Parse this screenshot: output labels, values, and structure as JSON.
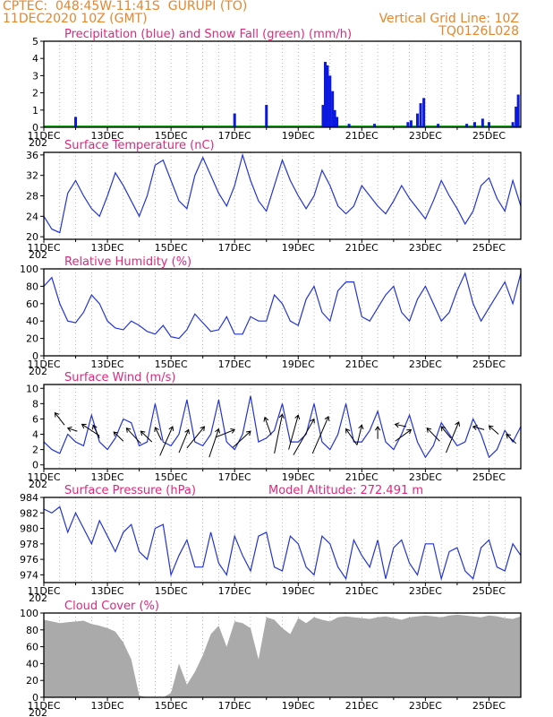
{
  "header": {
    "line1": "CPTEC:  048:45W-11:41S  GURUPI (TO)",
    "line2": "11DEC2020 10Z (GMT)",
    "grid_note": "Vertical Grid Line: 10Z",
    "code": "TQ0126L028"
  },
  "x_labels": [
    "11DEC",
    "13DEC",
    "15DEC",
    "17DEC",
    "19DEC",
    "21DEC",
    "23DEC",
    "25DEC"
  ],
  "year_stub": "202",
  "colors": {
    "title": "#e0287a",
    "header": "#e8862a",
    "line": "#2233dd",
    "snow": "#22aa22",
    "cloud": "#aaaaaa"
  },
  "chart_data": [
    {
      "id": "precip",
      "type": "bar",
      "title": "Precipitation (blue) and Snow Fall (green) (mm/h)",
      "ylim": [
        0,
        5
      ],
      "yticks": [
        0,
        1,
        2,
        3,
        4,
        5
      ],
      "x_unit": "days since 11DEC 10Z",
      "xlim": [
        0,
        15
      ],
      "series": [
        {
          "name": "Precipitation",
          "points": [
            [
              1.0,
              0.6
            ],
            [
              6.0,
              0.8
            ],
            [
              7.0,
              1.3
            ],
            [
              8.78,
              1.3
            ],
            [
              8.85,
              3.8
            ],
            [
              8.92,
              3.6
            ],
            [
              9.0,
              3.0
            ],
            [
              9.08,
              2.1
            ],
            [
              9.15,
              1.0
            ],
            [
              9.22,
              0.6
            ],
            [
              9.6,
              0.2
            ],
            [
              10.4,
              0.2
            ],
            [
              11.45,
              0.3
            ],
            [
              11.55,
              0.4
            ],
            [
              11.75,
              0.8
            ],
            [
              11.85,
              1.4
            ],
            [
              11.95,
              1.7
            ],
            [
              12.4,
              0.2
            ],
            [
              13.3,
              0.2
            ],
            [
              13.55,
              0.3
            ],
            [
              13.8,
              0.5
            ],
            [
              14.0,
              0.3
            ],
            [
              14.75,
              0.3
            ],
            [
              14.85,
              1.2
            ],
            [
              14.92,
              1.9
            ]
          ]
        },
        {
          "name": "Snow Fall",
          "points": []
        }
      ]
    },
    {
      "id": "temp",
      "type": "line",
      "title": "Surface Temperature (nC)",
      "ylim": [
        19.5,
        36.5
      ],
      "yticks": [
        20,
        24,
        28,
        32,
        36
      ],
      "x": [
        0,
        0.25,
        0.5,
        0.75,
        1,
        1.25,
        1.5,
        1.75,
        2,
        2.25,
        2.5,
        2.75,
        3,
        3.25,
        3.5,
        3.75,
        4,
        4.25,
        4.5,
        4.75,
        5,
        5.25,
        5.5,
        5.75,
        6,
        6.25,
        6.5,
        6.75,
        7,
        7.25,
        7.5,
        7.75,
        8,
        8.25,
        8.5,
        8.75,
        9,
        9.25,
        9.5,
        9.75,
        10,
        10.25,
        10.5,
        10.75,
        11,
        11.25,
        11.5,
        11.75,
        12,
        12.25,
        12.5,
        12.75,
        13,
        13.25,
        13.5,
        13.75,
        14,
        14.25,
        14.5,
        14.75,
        15
      ],
      "values": [
        24,
        21.5,
        20.8,
        28.5,
        31,
        28,
        25.5,
        24,
        28,
        32.5,
        30,
        27,
        24,
        28,
        34,
        35,
        31,
        27,
        25.5,
        32,
        35.5,
        32,
        28.5,
        26,
        30,
        36,
        31,
        27,
        25,
        30,
        35,
        31,
        28,
        25.5,
        28,
        33,
        30,
        26,
        24.5,
        26,
        30,
        28,
        26,
        24.5,
        27,
        30,
        27.5,
        25.5,
        23.5,
        27,
        31,
        28,
        25.5,
        22.5,
        25,
        30,
        31.5,
        27.5,
        25,
        31,
        26
      ]
    },
    {
      "id": "rh",
      "type": "line",
      "title": "Relative Humidity (%)",
      "ylim": [
        0,
        100
      ],
      "yticks": [
        0,
        20,
        40,
        60,
        80,
        100
      ],
      "x": [
        0,
        0.25,
        0.5,
        0.75,
        1,
        1.25,
        1.5,
        1.75,
        2,
        2.25,
        2.5,
        2.75,
        3,
        3.25,
        3.5,
        3.75,
        4,
        4.25,
        4.5,
        4.75,
        5,
        5.25,
        5.5,
        5.75,
        6,
        6.25,
        6.5,
        6.75,
        7,
        7.25,
        7.5,
        7.75,
        8,
        8.25,
        8.5,
        8.75,
        9,
        9.25,
        9.5,
        9.75,
        10,
        10.25,
        10.5,
        10.75,
        11,
        11.25,
        11.5,
        11.75,
        12,
        12.25,
        12.5,
        12.75,
        13,
        13.25,
        13.5,
        13.75,
        14,
        14.25,
        14.5,
        14.75,
        15
      ],
      "values": [
        80,
        90,
        60,
        40,
        38,
        50,
        70,
        60,
        40,
        32,
        30,
        40,
        35,
        28,
        25,
        35,
        22,
        20,
        30,
        48,
        38,
        28,
        30,
        45,
        25,
        25,
        45,
        40,
        40,
        70,
        60,
        40,
        35,
        65,
        80,
        50,
        40,
        75,
        85,
        85,
        45,
        40,
        55,
        70,
        80,
        50,
        40,
        65,
        80,
        60,
        40,
        50,
        75,
        95,
        60,
        40,
        55,
        70,
        85,
        60,
        95
      ]
    },
    {
      "id": "wind",
      "type": "line",
      "title": "Surface Wind (m/s)",
      "ylim": [
        -0.5,
        10.5
      ],
      "yticks": [
        0,
        2,
        4,
        6,
        8,
        10
      ],
      "x": [
        0,
        0.25,
        0.5,
        0.75,
        1,
        1.25,
        1.5,
        1.75,
        2,
        2.25,
        2.5,
        2.75,
        3,
        3.25,
        3.5,
        3.75,
        4,
        4.25,
        4.5,
        4.75,
        5,
        5.25,
        5.5,
        5.75,
        6,
        6.25,
        6.5,
        6.75,
        7,
        7.25,
        7.5,
        7.75,
        8,
        8.25,
        8.5,
        8.75,
        9,
        9.25,
        9.5,
        9.75,
        10,
        10.25,
        10.5,
        10.75,
        11,
        11.25,
        11.5,
        11.75,
        12,
        12.25,
        12.5,
        12.75,
        13,
        13.25,
        13.5,
        13.75,
        14,
        14.25,
        14.5,
        14.75,
        15
      ],
      "values": [
        3,
        2,
        1.5,
        4,
        3,
        2.5,
        6.5,
        3,
        2,
        3.5,
        6,
        5.5,
        2.5,
        3,
        8,
        3,
        2.5,
        4,
        8.5,
        3,
        2.5,
        4,
        8.5,
        3,
        2,
        4,
        9,
        3,
        3.5,
        4.5,
        8,
        3,
        3,
        4,
        8,
        3,
        2,
        4,
        8,
        3,
        3,
        4.5,
        7,
        3,
        2,
        4,
        6.5,
        3,
        1,
        2.5,
        5.5,
        4,
        2.5,
        3,
        6,
        4,
        1,
        2,
        4.5,
        3,
        5
      ],
      "vector_heads": [
        [
          0.35,
          6.8
        ],
        [
          0.75,
          4.8
        ],
        [
          1.2,
          5.3
        ],
        [
          1.55,
          5.2
        ],
        [
          2.2,
          4.3
        ],
        [
          2.6,
          4.8
        ],
        [
          3.05,
          4.4
        ],
        [
          3.5,
          4.9
        ],
        [
          4.05,
          5.0
        ],
        [
          4.55,
          4.6
        ],
        [
          5.05,
          5.0
        ],
        [
          5.5,
          4.7
        ],
        [
          6.0,
          4.6
        ],
        [
          6.5,
          4.4
        ],
        [
          6.95,
          6.2
        ],
        [
          7.5,
          6.6
        ],
        [
          8.0,
          6.5
        ],
        [
          8.5,
          6.0
        ],
        [
          8.95,
          6.3
        ],
        [
          9.5,
          4.7
        ],
        [
          10.0,
          5.2
        ],
        [
          10.5,
          5.0
        ],
        [
          11.05,
          5.3
        ],
        [
          11.55,
          4.6
        ],
        [
          12.05,
          4.8
        ],
        [
          12.5,
          5.0
        ],
        [
          13.05,
          5.6
        ],
        [
          13.5,
          5.0
        ],
        [
          14.0,
          5.1
        ],
        [
          14.55,
          4.0
        ]
      ],
      "vector_tails": [
        [
          0.65,
          5.2
        ],
        [
          1.05,
          4.4
        ],
        [
          1.75,
          3.8
        ],
        [
          1.75,
          3.5
        ],
        [
          2.5,
          3.1
        ],
        [
          3.05,
          2.8
        ],
        [
          3.4,
          3.0
        ],
        [
          3.7,
          3.2
        ],
        [
          3.65,
          1.2
        ],
        [
          4.25,
          1.6
        ],
        [
          4.5,
          2.2
        ],
        [
          5.2,
          1.0
        ],
        [
          5.4,
          3.6
        ],
        [
          5.95,
          2.3
        ],
        [
          7.15,
          3.9
        ],
        [
          7.25,
          1.5
        ],
        [
          7.7,
          2.0
        ],
        [
          7.85,
          1.3
        ],
        [
          8.45,
          1.5
        ],
        [
          9.85,
          2.6
        ],
        [
          9.85,
          2.6
        ],
        [
          10.5,
          3.4
        ],
        [
          11.4,
          5.0
        ],
        [
          11.05,
          3.1
        ],
        [
          12.45,
          3.1
        ],
        [
          12.8,
          3.5
        ],
        [
          12.65,
          1.6
        ],
        [
          13.85,
          4.6
        ],
        [
          14.3,
          4.0
        ],
        [
          14.85,
          2.8
        ]
      ]
    },
    {
      "id": "pressure",
      "type": "line",
      "title": "Surface Pressure (hPa)",
      "annotation": "Model Altitude: 272.491 m",
      "ylim": [
        973,
        984
      ],
      "yticks": [
        974,
        976,
        978,
        980,
        982,
        984
      ],
      "x": [
        0,
        0.25,
        0.5,
        0.75,
        1,
        1.25,
        1.5,
        1.75,
        2,
        2.25,
        2.5,
        2.75,
        3,
        3.25,
        3.5,
        3.75,
        4,
        4.25,
        4.5,
        4.75,
        5,
        5.25,
        5.5,
        5.75,
        6,
        6.25,
        6.5,
        6.75,
        7,
        7.25,
        7.5,
        7.75,
        8,
        8.25,
        8.5,
        8.75,
        9,
        9.25,
        9.5,
        9.75,
        10,
        10.25,
        10.5,
        10.75,
        11,
        11.25,
        11.5,
        11.75,
        12,
        12.25,
        12.5,
        12.75,
        13,
        13.25,
        13.5,
        13.75,
        14,
        14.25,
        14.5,
        14.75,
        15
      ],
      "values": [
        982.5,
        982,
        982.8,
        979.5,
        982,
        980,
        978,
        981,
        979,
        977,
        979.5,
        980.5,
        977,
        976,
        980,
        980.5,
        974,
        976.5,
        978.5,
        975,
        975,
        979.5,
        975.5,
        974,
        979,
        976.5,
        974.5,
        979,
        979.5,
        975,
        974.5,
        979,
        978,
        975,
        974,
        979,
        978,
        975,
        973.5,
        978.5,
        976.5,
        975,
        978.5,
        973.5,
        977.5,
        978.5,
        975.5,
        974,
        978,
        978,
        973.5,
        977,
        977.5,
        974.5,
        973.5,
        977.5,
        978.5,
        975,
        974.5,
        978,
        976.5
      ]
    },
    {
      "id": "cloud",
      "type": "area",
      "title": "Cloud Cover (%)",
      "ylim": [
        0,
        100
      ],
      "yticks": [
        0,
        20,
        40,
        60,
        80,
        100
      ],
      "x": [
        0,
        0.25,
        0.5,
        0.75,
        1,
        1.25,
        1.5,
        1.75,
        2,
        2.25,
        2.5,
        2.75,
        3,
        3.25,
        3.5,
        3.75,
        4,
        4.25,
        4.5,
        4.75,
        5,
        5.25,
        5.5,
        5.75,
        6,
        6.25,
        6.5,
        6.75,
        7,
        7.25,
        7.5,
        7.75,
        8,
        8.25,
        8.5,
        8.75,
        9,
        9.25,
        9.5,
        9.75,
        10,
        10.25,
        10.5,
        10.75,
        11,
        11.25,
        11.5,
        11.75,
        12,
        12.25,
        12.5,
        12.75,
        13,
        13.25,
        13.5,
        13.75,
        14,
        14.25,
        14.5,
        14.75,
        15
      ],
      "values": [
        92,
        90,
        88,
        89,
        90,
        91,
        87,
        85,
        82,
        78,
        65,
        45,
        2,
        0,
        0,
        0,
        5,
        40,
        15,
        30,
        50,
        75,
        85,
        60,
        90,
        88,
        82,
        45,
        95,
        92,
        82,
        75,
        94,
        88,
        95,
        92,
        90,
        95,
        96,
        95,
        94,
        93,
        95,
        96,
        94,
        92,
        95,
        96,
        97,
        96,
        95,
        97,
        98,
        97,
        96,
        95,
        97,
        96,
        94,
        93,
        96
      ]
    }
  ]
}
